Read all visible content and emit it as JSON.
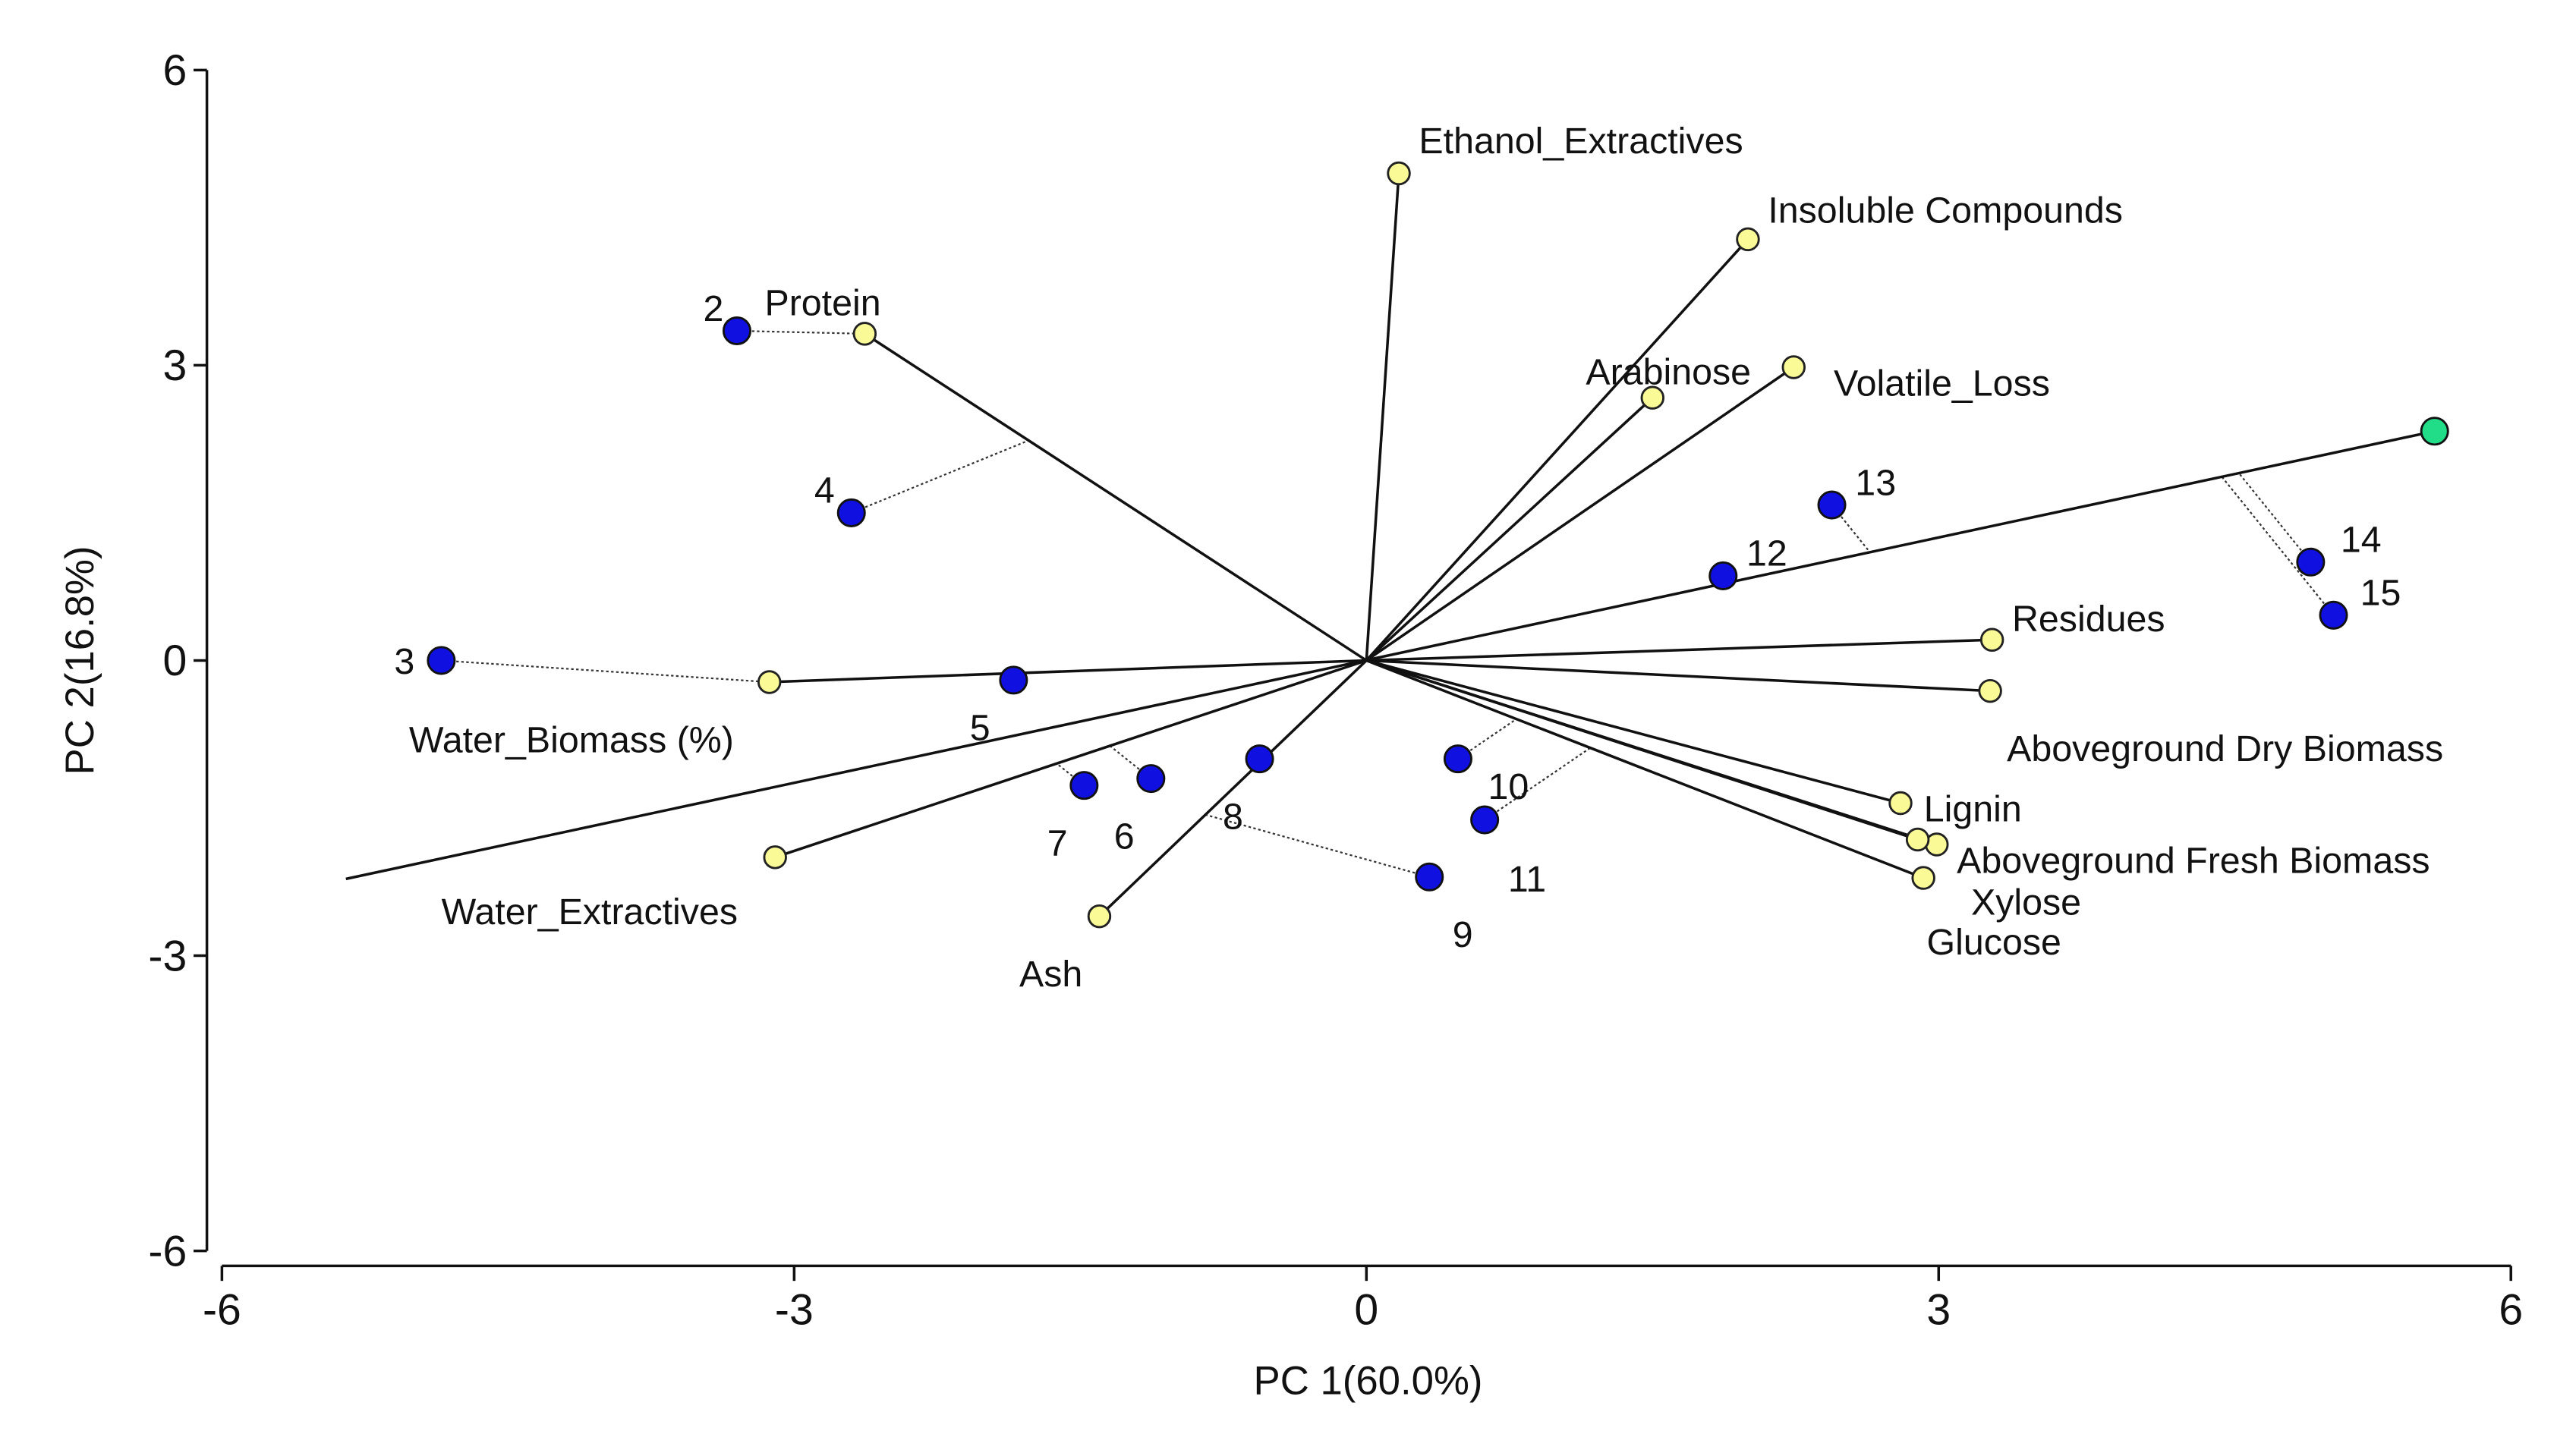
{
  "chart_data": {
    "type": "scatter",
    "title": "",
    "xlabel": "PC 1(60.0%)",
    "ylabel": "PC 2(16.8%)",
    "xlim": [
      -6,
      6
    ],
    "ylim": [
      -6,
      6
    ],
    "x_ticks": [
      -6,
      -3,
      0,
      3,
      6
    ],
    "y_ticks": [
      6,
      3,
      0,
      -3,
      -6
    ],
    "x_tick_labels": [
      "-6",
      "-3",
      "0",
      "3",
      "6"
    ],
    "y_tick_labels": [
      "6",
      "3",
      "0",
      "-3",
      "-6"
    ],
    "grid": false,
    "colors": {
      "sample_fill": "#1010e0",
      "variable_fill": "#fafa96",
      "extra_fill": "#22dd88",
      "line": "#111111"
    },
    "samples": [
      {
        "label": "2",
        "x": -3.3,
        "y": 3.35
      },
      {
        "label": "3",
        "x": -4.85,
        "y": 0.0
      },
      {
        "label": "4",
        "x": -2.7,
        "y": 1.5
      },
      {
        "label": "5",
        "x": -1.85,
        "y": -0.2
      },
      {
        "label": "6",
        "x": -1.13,
        "y": -1.2
      },
      {
        "label": "7",
        "x": -1.48,
        "y": -1.27
      },
      {
        "label": "8",
        "x": -0.56,
        "y": -1.0
      },
      {
        "label": "9",
        "x": 0.33,
        "y": -2.2
      },
      {
        "label": "10",
        "x": 0.48,
        "y": -1.0
      },
      {
        "label": "11",
        "x": 0.62,
        "y": -1.62
      },
      {
        "label": "12",
        "x": 1.87,
        "y": 0.86
      },
      {
        "label": "13",
        "x": 2.44,
        "y": 1.58
      },
      {
        "label": "14",
        "x": 4.95,
        "y": 1.0
      },
      {
        "label": "15",
        "x": 5.07,
        "y": 0.46
      }
    ],
    "variables": [
      {
        "label": "Ethanol_Extractives",
        "x": 0.17,
        "y": 4.95
      },
      {
        "label": "Insoluble  Compounds",
        "x": 2.0,
        "y": 4.28
      },
      {
        "label": "Protein",
        "x": -2.63,
        "y": 3.32
      },
      {
        "label": "Arabinose",
        "x": 1.5,
        "y": 2.67
      },
      {
        "label": "Volatile_Loss",
        "x": 2.24,
        "y": 2.98
      },
      {
        "label": "Residues",
        "x": 3.28,
        "y": 0.21
      },
      {
        "label": "Aboveground Dry Biomass",
        "x": 3.27,
        "y": -0.31
      },
      {
        "label": "Lignin",
        "x": 2.8,
        "y": -1.45
      },
      {
        "label": "Aboveground Fresh Biomass",
        "x": 2.99,
        "y": -1.87
      },
      {
        "label": "Xylose",
        "x": 2.89,
        "y": -1.82
      },
      {
        "label": "Glucose",
        "x": 2.92,
        "y": -2.21
      },
      {
        "label": "Water_Biomass (%)",
        "x": -3.13,
        "y": -0.22
      },
      {
        "label": "Water_Extractives",
        "x": -3.1,
        "y": -2.0
      },
      {
        "label": "Ash",
        "x": -1.4,
        "y": -2.6
      }
    ],
    "extra_point": {
      "x": 5.6,
      "y": 2.33
    },
    "axis_line": {
      "x1": -5.35,
      "y1": -2.22,
      "x2": 5.6,
      "y2": 2.33
    }
  }
}
